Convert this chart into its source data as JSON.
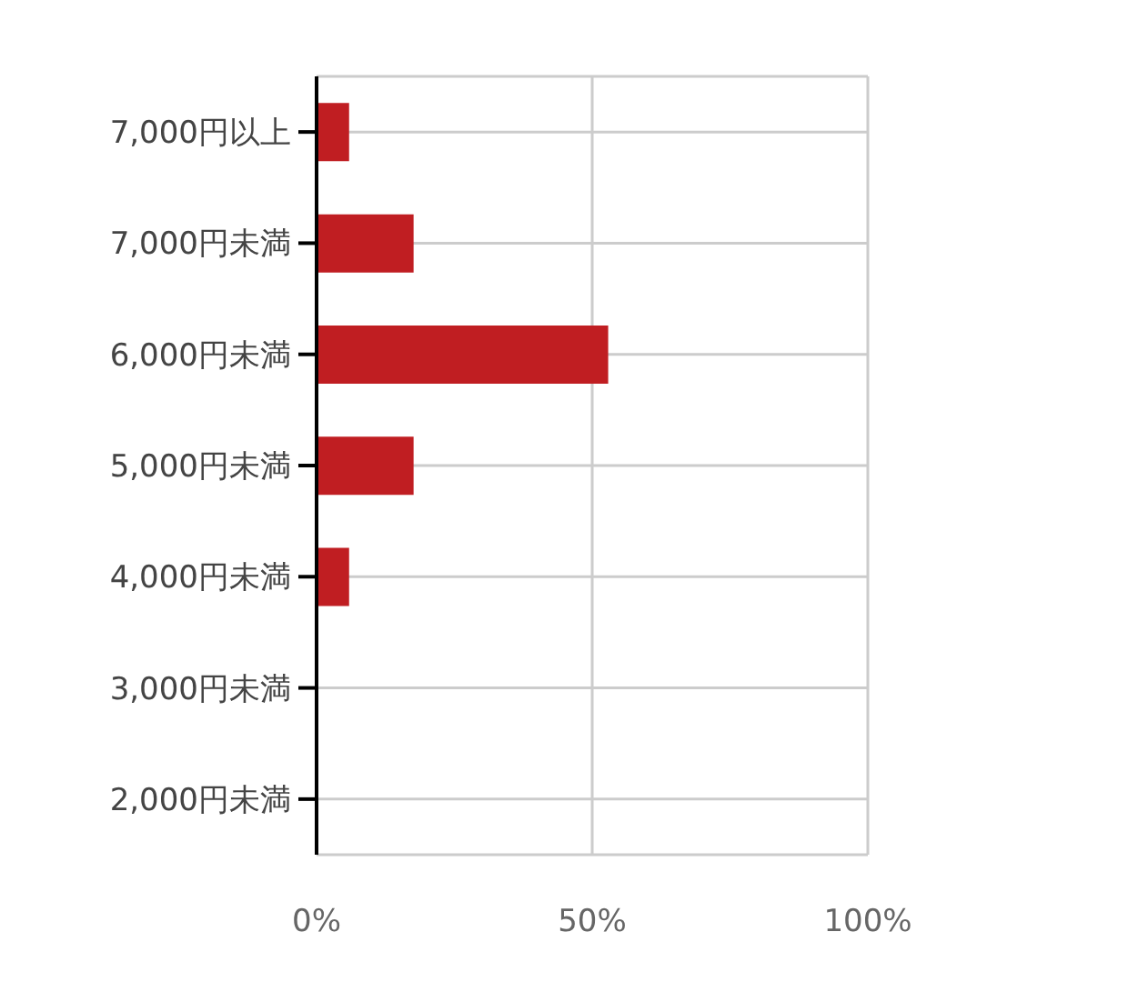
{
  "chart_data": {
    "type": "bar",
    "orientation": "horizontal",
    "categories": [
      "7,000円以上",
      "7,000円未満",
      "6,000円未満",
      "5,000円未満",
      "4,000円未満",
      "3,000円未満",
      "2,000円未満"
    ],
    "values": [
      5.9,
      17.6,
      52.9,
      17.6,
      5.9,
      0,
      0
    ],
    "color": "#c01e22",
    "xlim": [
      0,
      100
    ],
    "xticks": [
      {
        "value": 0,
        "label": "0%"
      },
      {
        "value": 50,
        "label": "50%"
      },
      {
        "value": 100,
        "label": "100%"
      }
    ],
    "grid": true,
    "legend": false
  }
}
